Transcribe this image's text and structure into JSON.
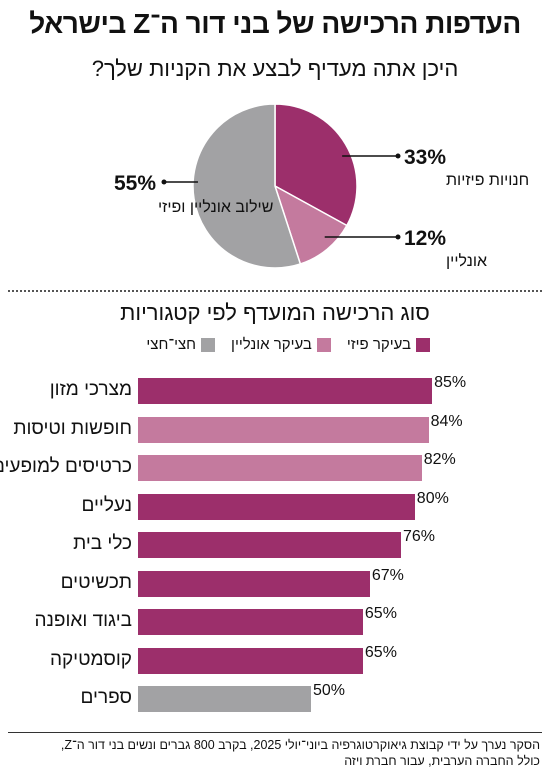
{
  "title": "העדפות הרכישה של בני דור ה־Z בישראל",
  "colors": {
    "physical": "#9c2f6b",
    "online": "#c47a9e",
    "hybrid": "#a2a2a4"
  },
  "chart_data": [
    {
      "type": "pie",
      "title": "היכן אתה מעדיף לבצע את הקניות שלך?",
      "slices": [
        {
          "label": "חנויות פיזיות",
          "value": 33,
          "value_label": "33%",
          "color": "#9c2f6b"
        },
        {
          "label": "אונליין",
          "value": 12,
          "value_label": "12%",
          "color": "#c47a9e"
        },
        {
          "label": "שילוב אונליין ופיזי",
          "value": 55,
          "value_label": "55%",
          "color": "#a2a2a4"
        }
      ]
    },
    {
      "type": "bar",
      "orientation": "horizontal",
      "title": "סוג הרכישה המועדף לפי קטגוריות",
      "legend": [
        {
          "label": "בעיקר פיזי",
          "color": "#9c2f6b"
        },
        {
          "label": "בעיקר אונליין",
          "color": "#c47a9e"
        },
        {
          "label": "חצי־חצי",
          "color": "#a2a2a4"
        }
      ],
      "legend_position": "top",
      "xlim": [
        0,
        100
      ],
      "categories": [
        "מצרכי מזון",
        "חופשות וטיסות",
        "כרטיסים למופעים",
        "נעליים",
        "כלי בית",
        "תכשיטים",
        "ביגוד ואופנה",
        "קוסמטיקה",
        "ספרים"
      ],
      "values": [
        85,
        84,
        82,
        80,
        76,
        67,
        65,
        65,
        50
      ],
      "value_labels": [
        "85%",
        "84%",
        "82%",
        "80%",
        "76%",
        "67%",
        "65%",
        "65%",
        "50%"
      ],
      "bar_type": [
        "physical",
        "online",
        "online",
        "physical",
        "physical",
        "physical",
        "physical",
        "physical",
        "hybrid"
      ]
    }
  ],
  "footnote": {
    "line1": "הסקר נערך על ידי קבוצת גיאוקרטוגרפיה ביוני־יולי 2025, בקרב 800 גברים ונשים בני דור ה־Z,",
    "line2": "כולל החברה הערבית, עבור חברת ויזה"
  }
}
